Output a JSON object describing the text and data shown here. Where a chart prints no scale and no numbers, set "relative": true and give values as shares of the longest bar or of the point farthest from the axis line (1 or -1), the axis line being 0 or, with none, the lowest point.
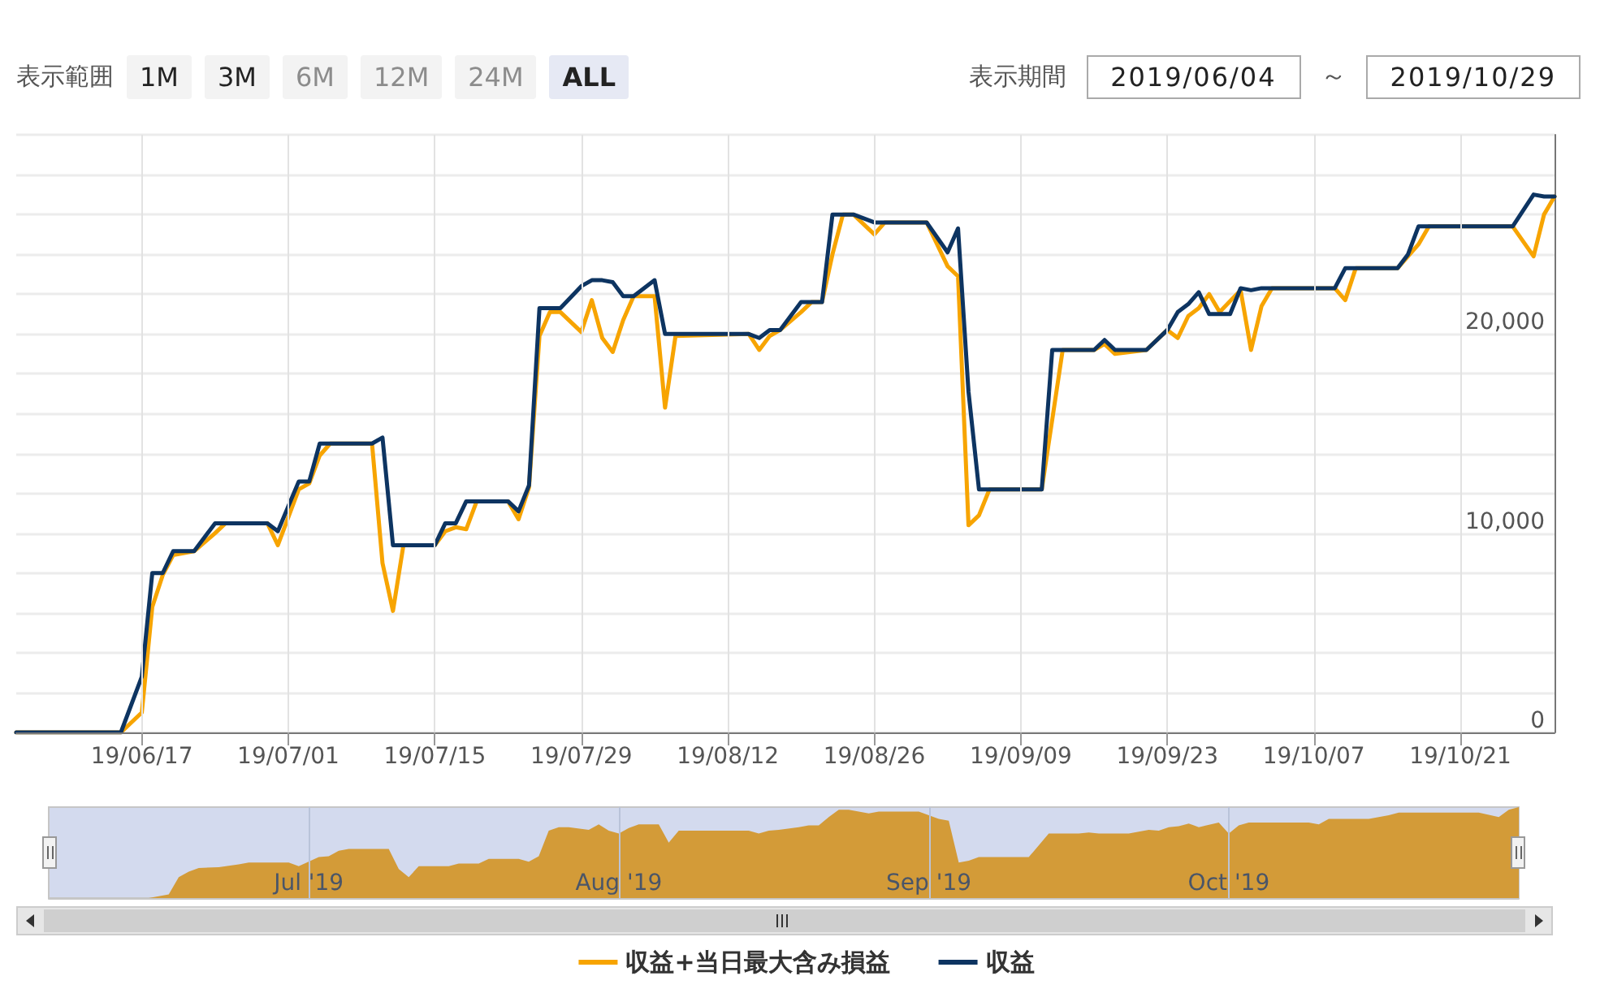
{
  "chart_data": [
    {
      "type": "line",
      "annotations": [
        "表示範囲",
        "1M",
        "3M",
        "6M",
        "12M",
        "24M",
        "ALL",
        "表示期間",
        "2019/06/04",
        "～",
        "2019/10/29"
      ],
      "xlim": [
        "2019-06-05",
        "2019-10-30"
      ],
      "xticks": [
        {
          "value": "2019-06-17",
          "label": "19/06/17"
        },
        {
          "value": "2019-07-01",
          "label": "19/07/01"
        },
        {
          "value": "2019-07-15",
          "label": "19/07/15"
        },
        {
          "value": "2019-07-29",
          "label": "19/07/29"
        },
        {
          "value": "2019-08-12",
          "label": "19/08/12"
        },
        {
          "value": "2019-08-26",
          "label": "19/08/26"
        },
        {
          "value": "2019-09-09",
          "label": "19/09/09"
        },
        {
          "value": "2019-09-23",
          "label": "19/09/23"
        },
        {
          "value": "2019-10-07",
          "label": "19/10/07"
        },
        {
          "value": "2019-10-21",
          "label": "19/10/21"
        }
      ],
      "ylim": [
        0,
        30000
      ],
      "yticks": [
        0,
        {
          "value": 2000,
          "label": null
        },
        {
          "value": 4000,
          "label": null
        },
        {
          "value": 6000,
          "label": null
        },
        {
          "value": 8000,
          "label": null
        },
        {
          "value": 10000,
          "label": "10,000"
        },
        {
          "value": 12000,
          "label": null
        },
        {
          "value": 14000,
          "label": null
        },
        {
          "value": 16000,
          "label": null
        },
        {
          "value": 18000,
          "label": null
        },
        {
          "value": 20000,
          "label": "20,000"
        },
        {
          "value": 22000,
          "label": null
        },
        {
          "value": 24000,
          "label": null
        },
        {
          "value": 26000,
          "label": null
        },
        {
          "value": 28000,
          "label": null
        },
        {
          "value": 30000,
          "label": null
        }
      ],
      "grid": true,
      "legend": "bottom",
      "marker": "none",
      "line_style": "solid",
      "series": [
        {
          "name": "収益+当日最大含み損益",
          "color": "#f7a400",
          "x": [
            "2019-06-05",
            "2019-06-15",
            "2019-06-17",
            "2019-06-18",
            "2019-06-19",
            "2019-06-20",
            "2019-06-22",
            "2019-06-24",
            "2019-06-25",
            "2019-06-29",
            "2019-06-30",
            "2019-07-02",
            "2019-07-03",
            "2019-07-04",
            "2019-07-05",
            "2019-07-09",
            "2019-07-10",
            "2019-07-11",
            "2019-07-12",
            "2019-07-15",
            "2019-07-16",
            "2019-07-17",
            "2019-07-18",
            "2019-07-19",
            "2019-07-22",
            "2019-07-23",
            "2019-07-24",
            "2019-07-25",
            "2019-07-26",
            "2019-07-27",
            "2019-07-29",
            "2019-07-30",
            "2019-07-31",
            "2019-08-01",
            "2019-08-02",
            "2019-08-03",
            "2019-08-05",
            "2019-08-06",
            "2019-08-07",
            "2019-08-14",
            "2019-08-15",
            "2019-08-16",
            "2019-08-17",
            "2019-08-19",
            "2019-08-20",
            "2019-08-21",
            "2019-08-22",
            "2019-08-23",
            "2019-08-24",
            "2019-08-26",
            "2019-08-27",
            "2019-08-31",
            "2019-09-02",
            "2019-09-03",
            "2019-09-04",
            "2019-09-05",
            "2019-09-06",
            "2019-09-11",
            "2019-09-13",
            "2019-09-16",
            "2019-09-17",
            "2019-09-18",
            "2019-09-21",
            "2019-09-23",
            "2019-09-24",
            "2019-09-25",
            "2019-09-26",
            "2019-09-27",
            "2019-09-28",
            "2019-09-30",
            "2019-10-01",
            "2019-10-02",
            "2019-10-03",
            "2019-10-09",
            "2019-10-10",
            "2019-10-11",
            "2019-10-15",
            "2019-10-16",
            "2019-10-17",
            "2019-10-18",
            "2019-10-26",
            "2019-10-28",
            "2019-10-29",
            "2019-10-30"
          ],
          "values": [
            0,
            0,
            1000,
            6300,
            7900,
            8900,
            9100,
            10000,
            10500,
            10500,
            9400,
            12200,
            12500,
            13900,
            14500,
            14500,
            8500,
            6100,
            9400,
            9400,
            10100,
            10300,
            10200,
            11600,
            11600,
            10700,
            12300,
            19900,
            21100,
            21100,
            20100,
            21700,
            19800,
            19100,
            20700,
            21900,
            21900,
            16300,
            19900,
            20000,
            19200,
            19900,
            20200,
            21100,
            21600,
            21600,
            24000,
            26000,
            26000,
            25000,
            25600,
            25600,
            23400,
            22900,
            10400,
            10900,
            12200,
            12200,
            19200,
            19200,
            19500,
            19000,
            19200,
            20200,
            19800,
            20900,
            21300,
            22000,
            21100,
            22200,
            19200,
            21400,
            22300,
            22300,
            21700,
            23300,
            23300,
            23900,
            24500,
            25400,
            25400,
            23900,
            26000,
            26900
          ]
        },
        {
          "name": "収益",
          "color": "#0d3461",
          "x": [
            "2019-06-05",
            "2019-06-15",
            "2019-06-17",
            "2019-06-18",
            "2019-06-19",
            "2019-06-20",
            "2019-06-22",
            "2019-06-24",
            "2019-06-29",
            "2019-06-30",
            "2019-07-02",
            "2019-07-03",
            "2019-07-04",
            "2019-07-09",
            "2019-07-10",
            "2019-07-11",
            "2019-07-15",
            "2019-07-16",
            "2019-07-17",
            "2019-07-18",
            "2019-07-22",
            "2019-07-23",
            "2019-07-24",
            "2019-07-25",
            "2019-07-27",
            "2019-07-29",
            "2019-07-30",
            "2019-07-31",
            "2019-08-01",
            "2019-08-02",
            "2019-08-03",
            "2019-08-05",
            "2019-08-06",
            "2019-08-14",
            "2019-08-15",
            "2019-08-16",
            "2019-08-17",
            "2019-08-19",
            "2019-08-21",
            "2019-08-22",
            "2019-08-24",
            "2019-08-26",
            "2019-08-31",
            "2019-09-02",
            "2019-09-03",
            "2019-09-04",
            "2019-09-05",
            "2019-09-11",
            "2019-09-12",
            "2019-09-16",
            "2019-09-17",
            "2019-09-18",
            "2019-09-21",
            "2019-09-23",
            "2019-09-24",
            "2019-09-25",
            "2019-09-26",
            "2019-09-27",
            "2019-09-29",
            "2019-09-30",
            "2019-10-01",
            "2019-10-02",
            "2019-10-09",
            "2019-10-10",
            "2019-10-15",
            "2019-10-16",
            "2019-10-17",
            "2019-10-26",
            "2019-10-28",
            "2019-10-29",
            "2019-10-30"
          ],
          "values": [
            0,
            0,
            2800,
            8000,
            8000,
            9100,
            9100,
            10500,
            10500,
            10100,
            12600,
            12600,
            14500,
            14500,
            14800,
            9400,
            9400,
            10500,
            10500,
            11600,
            11600,
            11100,
            12400,
            21300,
            21300,
            22400,
            22700,
            22700,
            22600,
            21900,
            21900,
            22700,
            20000,
            20000,
            19800,
            20200,
            20200,
            21600,
            21600,
            26000,
            26000,
            25600,
            25600,
            24100,
            25300,
            17100,
            12200,
            12200,
            19200,
            19200,
            19700,
            19200,
            19200,
            20200,
            21100,
            21500,
            22100,
            21000,
            21000,
            22300,
            22200,
            22300,
            22300,
            23300,
            23300,
            24000,
            25400,
            25400,
            27000,
            26900,
            26900
          ]
        }
      ]
    },
    {
      "type": "area",
      "relative": true,
      "color": "#d39b38",
      "grid": "x",
      "xlim": [
        "2019-06-05",
        "2019-10-30"
      ],
      "xticks": [
        {
          "value": "2019-07-01",
          "label": "Jul '19"
        },
        {
          "value": "2019-08-01",
          "label": "Aug '19"
        },
        {
          "value": "2019-09-01",
          "label": "Sep '19"
        },
        {
          "value": "2019-10-01",
          "label": "Oct '19"
        }
      ],
      "tick_labels": "x",
      "x": [
        "2019-06-05",
        "2019-06-15",
        "2019-06-17",
        "2019-06-18",
        "2019-06-19",
        "2019-06-20",
        "2019-06-22",
        "2019-06-24",
        "2019-06-25",
        "2019-06-29",
        "2019-06-30",
        "2019-07-02",
        "2019-07-03",
        "2019-07-04",
        "2019-07-05",
        "2019-07-09",
        "2019-07-10",
        "2019-07-11",
        "2019-07-12",
        "2019-07-15",
        "2019-07-16",
        "2019-07-17",
        "2019-07-18",
        "2019-07-19",
        "2019-07-22",
        "2019-07-23",
        "2019-07-24",
        "2019-07-25",
        "2019-07-26",
        "2019-07-27",
        "2019-07-29",
        "2019-07-30",
        "2019-07-31",
        "2019-08-01",
        "2019-08-02",
        "2019-08-03",
        "2019-08-05",
        "2019-08-06",
        "2019-08-07",
        "2019-08-14",
        "2019-08-15",
        "2019-08-16",
        "2019-08-17",
        "2019-08-19",
        "2019-08-20",
        "2019-08-21",
        "2019-08-22",
        "2019-08-23",
        "2019-08-24",
        "2019-08-26",
        "2019-08-27",
        "2019-08-31",
        "2019-09-02",
        "2019-09-03",
        "2019-09-04",
        "2019-09-05",
        "2019-09-06",
        "2019-09-11",
        "2019-09-13",
        "2019-09-16",
        "2019-09-17",
        "2019-09-18",
        "2019-09-21",
        "2019-09-23",
        "2019-09-24",
        "2019-09-25",
        "2019-09-26",
        "2019-09-27",
        "2019-09-28",
        "2019-09-30",
        "2019-10-01",
        "2019-10-02",
        "2019-10-03",
        "2019-10-09",
        "2019-10-10",
        "2019-10-11",
        "2019-10-15",
        "2019-10-16",
        "2019-10-17",
        "2019-10-18",
        "2019-10-26",
        "2019-10-28",
        "2019-10-29",
        "2019-10-30"
      ],
      "values": [
        0,
        0,
        0.04,
        0.23,
        0.29,
        0.33,
        0.34,
        0.37,
        0.39,
        0.39,
        0.35,
        0.45,
        0.46,
        0.52,
        0.54,
        0.54,
        0.32,
        0.23,
        0.35,
        0.35,
        0.38,
        0.38,
        0.38,
        0.43,
        0.43,
        0.4,
        0.46,
        0.74,
        0.78,
        0.78,
        0.75,
        0.81,
        0.74,
        0.71,
        0.77,
        0.81,
        0.81,
        0.61,
        0.74,
        0.74,
        0.71,
        0.74,
        0.75,
        0.78,
        0.8,
        0.8,
        0.89,
        0.97,
        0.97,
        0.93,
        0.95,
        0.95,
        0.87,
        0.85,
        0.39,
        0.41,
        0.45,
        0.45,
        0.71,
        0.71,
        0.72,
        0.71,
        0.71,
        0.75,
        0.74,
        0.78,
        0.79,
        0.82,
        0.78,
        0.83,
        0.71,
        0.8,
        0.83,
        0.83,
        0.81,
        0.87,
        0.87,
        0.89,
        0.91,
        0.94,
        0.94,
        0.89,
        0.97,
        1
      ]
    }
  ]
}
